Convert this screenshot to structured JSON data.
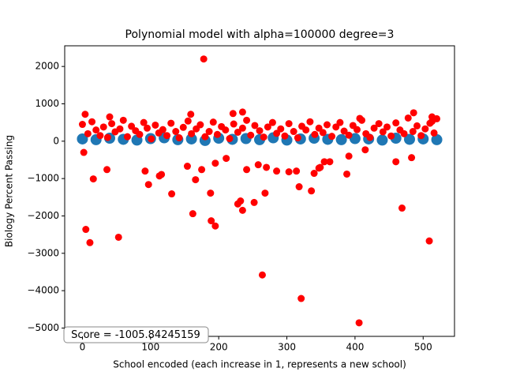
{
  "chart_data": {
    "type": "scatter",
    "title": "Polynomial model with alpha=100000 degree=3",
    "xlabel": "School encoded (each increase in 1, represents a new school)",
    "ylabel": "Biology Percent Passing",
    "annotation": "Score = -1005.84245159",
    "xlim": [
      -26,
      546
    ],
    "ylim": [
      -5223,
      2553
    ],
    "xticks": [
      0,
      100,
      200,
      300,
      400,
      500
    ],
    "yticks": [
      {
        "value": -5000,
        "label": "−5000"
      },
      {
        "value": -4000,
        "label": "−4000"
      },
      {
        "value": -3000,
        "label": "−3000"
      },
      {
        "value": -2000,
        "label": "−2000"
      },
      {
        "value": -1000,
        "label": "−1000"
      },
      0,
      1000,
      2000
    ],
    "series": [
      {
        "color": "#1f77b4",
        "size": 7,
        "x": [
          0,
          20,
          40,
          60,
          80,
          100,
          120,
          140,
          160,
          180,
          200,
          220,
          240,
          260,
          280,
          300,
          320,
          340,
          360,
          380,
          400,
          420,
          440,
          460,
          480,
          500,
          520
        ],
        "values": [
          60,
          40,
          80,
          50,
          30,
          70,
          90,
          40,
          60,
          20,
          80,
          50,
          70,
          40,
          90,
          30,
          60,
          80,
          50,
          40,
          70,
          60,
          30,
          80,
          50,
          60,
          40
        ]
      },
      {
        "color": "#ff0000",
        "size": 4.5,
        "x": [
          0,
          8,
          14,
          20,
          26,
          31,
          37,
          43,
          48,
          55,
          60,
          66,
          72,
          78,
          84,
          90,
          95,
          101,
          107,
          112,
          118,
          124,
          130,
          137,
          142,
          148,
          155,
          160,
          167,
          173,
          180,
          186,
          192,
          198,
          204,
          210,
          216,
          222,
          228,
          235,
          241,
          247,
          253,
          260,
          266,
          272,
          279,
          285,
          291,
          297,
          303,
          310,
          316,
          322,
          328,
          334,
          341,
          347,
          353,
          359,
          366,
          372,
          378,
          384,
          391,
          397,
          403,
          410,
          416,
          422,
          428,
          435,
          441,
          447,
          453,
          460,
          466,
          472,
          478,
          485,
          491,
          497,
          503,
          510,
          516,
          520
        ],
        "values": [
          450,
          200,
          520,
          300,
          150,
          380,
          100,
          470,
          250,
          330,
          560,
          120,
          400,
          280,
          180,
          500,
          350,
          60,
          430,
          220,
          310,
          150,
          480,
          260,
          90,
          370,
          540,
          200,
          330,
          440,
          120,
          260,
          510,
          180,
          390,
          300,
          70,
          460,
          240,
          350,
          560,
          160,
          420,
          280,
          110,
          380,
          500,
          210,
          330,
          140,
          470,
          260,
          90,
          400,
          300,
          520,
          180,
          350,
          230,
          440,
          130,
          380,
          500,
          270,
          160,
          420,
          310,
          560,
          200,
          100,
          350,
          470,
          250,
          380,
          140,
          490,
          300,
          200,
          620,
          260,
          410,
          150,
          330,
          480,
          220,
          600
        ]
      },
      {
        "color": "#ff0000",
        "size": 4.5,
        "x": [
          178,
          5,
          11,
          16,
          36,
          53,
          92,
          97,
          113,
          116,
          131,
          154,
          162,
          166,
          175,
          188,
          189,
          195,
          195,
          211,
          228,
          232,
          235,
          241,
          252,
          258,
          264,
          268,
          270,
          285,
          303,
          314,
          318,
          321,
          336,
          340,
          347,
          349,
          355,
          363,
          388,
          391,
          406,
          415,
          460,
          469,
          483,
          509,
          2,
          4,
          235,
          221,
          159,
          486,
          40,
          407,
          513,
          513
        ],
        "values": [
          2200,
          -2360,
          -2715,
          -1010,
          -760,
          -2570,
          -800,
          -1160,
          -930,
          -890,
          -1410,
          -670,
          -1940,
          -1030,
          -760,
          -1390,
          -2130,
          -2270,
          -590,
          -460,
          -1680,
          -1600,
          -1850,
          -760,
          -1640,
          -630,
          -3580,
          -1390,
          -700,
          -800,
          -820,
          -800,
          -1220,
          -4210,
          -1330,
          -860,
          -720,
          -700,
          -550,
          -550,
          -880,
          -400,
          -4860,
          -230,
          -550,
          -1790,
          -440,
          -2670,
          -300,
          720,
          780,
          740,
          720,
          760,
          650,
          610,
          650,
          530
        ]
      }
    ]
  }
}
